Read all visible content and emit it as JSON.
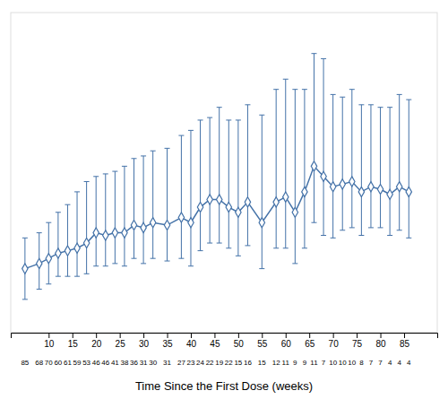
{
  "chart_data": {
    "type": "line",
    "xlabel": "Time Since the First Dose (weeks)",
    "x": [
      5,
      8,
      10,
      12,
      14,
      16,
      18,
      20,
      22,
      24,
      26,
      28,
      30,
      32,
      35,
      38,
      40,
      42,
      44,
      46,
      48,
      50,
      52,
      55,
      58,
      60,
      62,
      64,
      66,
      68,
      70,
      72,
      74,
      76,
      78,
      80,
      82,
      84,
      86
    ],
    "series": [
      {
        "color": "#4472a8",
        "marker": "diamond",
        "line_style": "solid",
        "values": [
          0.0,
          0.02,
          0.04,
          0.06,
          0.07,
          0.08,
          0.1,
          0.14,
          0.13,
          0.14,
          0.14,
          0.17,
          0.16,
          0.18,
          0.17,
          0.2,
          0.18,
          0.24,
          0.27,
          0.27,
          0.24,
          0.22,
          0.26,
          0.18,
          0.26,
          0.28,
          0.22,
          0.3,
          0.4,
          0.36,
          0.32,
          0.33,
          0.34,
          0.3,
          0.32,
          0.31,
          0.29,
          0.32,
          0.3
        ],
        "error_low": [
          0.12,
          0.1,
          0.1,
          0.09,
          0.1,
          0.11,
          0.12,
          0.13,
          0.12,
          0.12,
          0.13,
          0.13,
          0.14,
          0.14,
          0.14,
          0.16,
          0.17,
          0.17,
          0.17,
          0.17,
          0.16,
          0.17,
          0.17,
          0.18,
          0.18,
          0.2,
          0.2,
          0.22,
          0.22,
          0.23,
          0.2,
          0.18,
          0.18,
          0.17,
          0.16,
          0.15,
          0.16,
          0.17,
          0.18
        ],
        "error_high": [
          0.12,
          0.12,
          0.14,
          0.16,
          0.18,
          0.22,
          0.24,
          0.22,
          0.24,
          0.24,
          0.26,
          0.26,
          0.28,
          0.28,
          0.3,
          0.32,
          0.36,
          0.34,
          0.32,
          0.36,
          0.34,
          0.36,
          0.38,
          0.42,
          0.44,
          0.46,
          0.48,
          0.4,
          0.44,
          0.46,
          0.36,
          0.34,
          0.36,
          0.34,
          0.32,
          0.32,
          0.34,
          0.36,
          0.36
        ]
      }
    ],
    "annotations": [
      "85",
      "68",
      "70",
      "60",
      "61",
      "59",
      "53",
      "46",
      "46",
      "41",
      "38",
      "36",
      "31",
      "30",
      "31",
      "27",
      "23",
      "24",
      "22",
      "19",
      "22",
      "15",
      "16",
      "15",
      "12",
      "11",
      "9",
      "9",
      "11",
      "7",
      "10",
      "10",
      "10",
      "8",
      "7",
      "7",
      "4",
      "4",
      "4"
    ],
    "xlim": [
      2,
      92
    ],
    "xticks": [
      10,
      15,
      20,
      25,
      30,
      35,
      40,
      45,
      50,
      55,
      60,
      65,
      70,
      75,
      80,
      85
    ],
    "ylim": [
      -0.25,
      1.0
    ],
    "yticks": [],
    "tick_labels": "x",
    "grid": false
  }
}
